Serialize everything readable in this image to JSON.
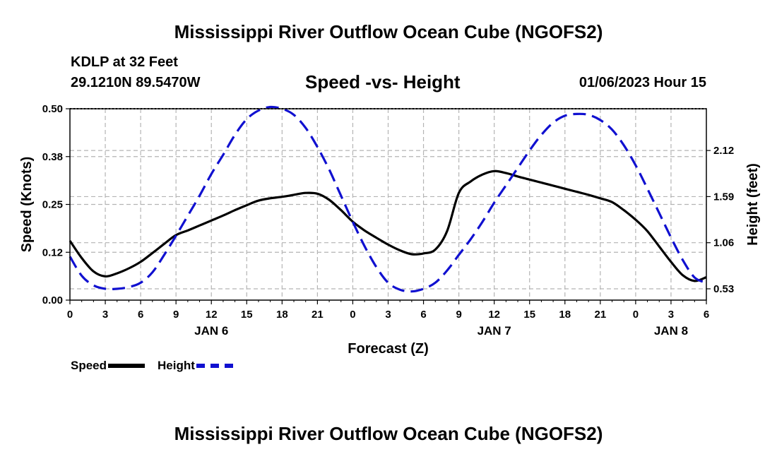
{
  "header": {
    "title_top": "Mississippi River Outflow Ocean Cube (NGOFS2)",
    "station": "KDLP at 32 Feet",
    "coords": "29.1210N  89.5470W",
    "datetime": "01/06/2023 Hour 15",
    "title_bottom": "Mississippi River Outflow Ocean Cube (NGOFS2)"
  },
  "colors": {
    "speed": "#000000",
    "height": "#1010d0",
    "grid": "#b4b4b4"
  },
  "chart_data": {
    "type": "line",
    "subtitle": "Speed -vs- Height",
    "xlabel": "Forecast (Z)",
    "ylabel_left": "Speed (Knots)",
    "ylabel_right": "Height (feet)",
    "xlim": [
      0,
      54
    ],
    "ylim_left": [
      0,
      0.5
    ],
    "ylim_right": [
      0.4,
      2.6
    ],
    "x_ticks": [
      0,
      3,
      6,
      9,
      12,
      15,
      18,
      21,
      24,
      27,
      30,
      33,
      36,
      39,
      42,
      45,
      48,
      51,
      54
    ],
    "x_tick_labels": [
      "0",
      "3",
      "6",
      "9",
      "12",
      "15",
      "18",
      "21",
      "0",
      "3",
      "6",
      "9",
      "12",
      "15",
      "18",
      "21",
      "0",
      "3",
      "6"
    ],
    "day_labels": [
      {
        "x": 12,
        "label": "JAN 6"
      },
      {
        "x": 36,
        "label": "JAN 7"
      },
      {
        "x": 51,
        "label": "JAN 8"
      }
    ],
    "y_left_ticks": [
      0.0,
      0.125,
      0.25,
      0.375,
      0.5
    ],
    "y_left_tick_labels": [
      "0.00",
      "0.12",
      "0.25",
      "0.38",
      "0.50"
    ],
    "y_right_ticks": [
      0.53,
      1.06,
      1.59,
      2.12
    ],
    "y_right_tick_labels": [
      "0.53",
      "1.06",
      "1.59",
      "2.12"
    ],
    "grid": true,
    "legend_position": "bottom-left",
    "series": [
      {
        "name": "Speed",
        "axis": "left",
        "style": "solid",
        "x": [
          0,
          1,
          2,
          3,
          4,
          5,
          6,
          7,
          8,
          9,
          10,
          11,
          12,
          13,
          14,
          15,
          16,
          17,
          18,
          19,
          20,
          21,
          22,
          23,
          24,
          25,
          26,
          27,
          28,
          29,
          30,
          31,
          32,
          33,
          34,
          35,
          36,
          37,
          38,
          39,
          40,
          41,
          42,
          43,
          44,
          45,
          46,
          47,
          48,
          49,
          50,
          51,
          52,
          53,
          54
        ],
        "values": [
          0.155,
          0.11,
          0.075,
          0.062,
          0.07,
          0.083,
          0.1,
          0.123,
          0.147,
          0.17,
          0.182,
          0.195,
          0.208,
          0.221,
          0.235,
          0.248,
          0.26,
          0.266,
          0.27,
          0.275,
          0.28,
          0.278,
          0.262,
          0.235,
          0.205,
          0.182,
          0.163,
          0.145,
          0.13,
          0.12,
          0.122,
          0.132,
          0.18,
          0.28,
          0.31,
          0.328,
          0.337,
          0.332,
          0.323,
          0.315,
          0.307,
          0.299,
          0.291,
          0.283,
          0.275,
          0.266,
          0.256,
          0.235,
          0.21,
          0.18,
          0.14,
          0.1,
          0.065,
          0.05,
          0.06
        ]
      },
      {
        "name": "Height",
        "axis": "right",
        "style": "dashed",
        "x": [
          0,
          1,
          2,
          3,
          4,
          5,
          6,
          7,
          8,
          9,
          10,
          11,
          12,
          13,
          14,
          15,
          16,
          17,
          18,
          19,
          20,
          21,
          22,
          23,
          24,
          25,
          26,
          27,
          28,
          29,
          30,
          31,
          32,
          33,
          34,
          35,
          36,
          37,
          38,
          39,
          40,
          41,
          42,
          43,
          44,
          45,
          46,
          47,
          48,
          49,
          50,
          51,
          52,
          53,
          54
        ],
        "values": [
          0.9,
          0.68,
          0.57,
          0.53,
          0.53,
          0.55,
          0.6,
          0.72,
          0.92,
          1.14,
          1.37,
          1.6,
          1.85,
          2.07,
          2.3,
          2.48,
          2.58,
          2.62,
          2.6,
          2.53,
          2.38,
          2.16,
          1.9,
          1.6,
          1.3,
          1.02,
          0.78,
          0.6,
          0.52,
          0.5,
          0.53,
          0.6,
          0.74,
          0.92,
          1.1,
          1.3,
          1.52,
          1.72,
          1.92,
          2.12,
          2.3,
          2.44,
          2.52,
          2.54,
          2.53,
          2.47,
          2.36,
          2.18,
          1.95,
          1.68,
          1.4,
          1.12,
          0.86,
          0.66,
          0.6
        ]
      }
    ]
  }
}
